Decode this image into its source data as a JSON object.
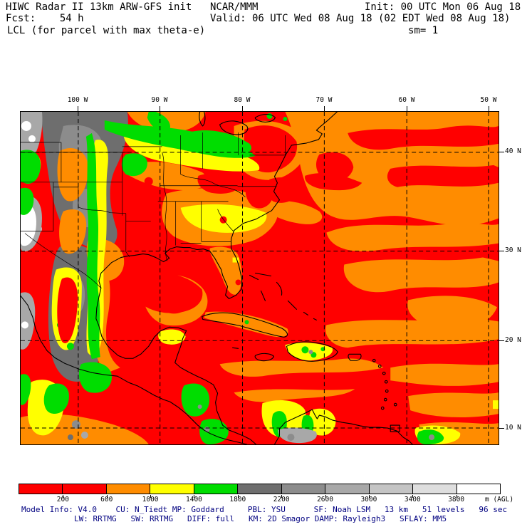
{
  "header": {
    "title": "HIWC Radar II 13km ARW-GFS init",
    "org": "NCAR/MMM",
    "init": "Init: 00 UTC Mon 06 Aug 18",
    "fcst": "Fcst:    54 h",
    "valid": "Valid: 06 UTC Wed 08 Aug 18 (02 EDT Wed 08 Aug 18)",
    "field": "LCL (for parcel with max theta-e)",
    "sm": "sm= 1"
  },
  "axes": {
    "lon_labels": [
      "100 W",
      "90 W",
      "80 W",
      "70 W",
      "60 W",
      "50 W"
    ],
    "lat_labels": [
      "40 N",
      "30 N",
      "20 N",
      "10 N"
    ]
  },
  "colorbar": {
    "ticks": [
      "200",
      "600",
      "1000",
      "1400",
      "1800",
      "2200",
      "2600",
      "3000",
      "3400",
      "3800"
    ],
    "unit": "m (AGL)",
    "segment_colors": [
      "#ff0000",
      "#ff0000",
      "#ff8c00",
      "#ffff00",
      "#00dd00",
      "#6e6e6e",
      "#8c8c8c",
      "#a8a8a8",
      "#c4c4c4",
      "#dedede",
      "#ffffff"
    ]
  },
  "footer": {
    "line1": "Model Info: V4.0    CU: N_Tiedt MP: Goddard     PBL: YSU      SF: Noah LSM   13 km   51 levels   96 sec",
    "line2": "LW: RRTMG   SW: RRTMG   DIFF: full   KM: 2D Smagor DAMP: Rayleigh3   SFLAY: MM5"
  },
  "palette": {
    "red": "#ff0000",
    "orange": "#ff8c00",
    "yellow": "#ffff00",
    "green": "#00dd00",
    "gray1": "#6e6e6e",
    "gray2": "#8c8c8c",
    "gray3": "#a8a8a8",
    "gray4": "#c4c4c4",
    "gray5": "#dedede",
    "white": "#ffffff",
    "footer_text": "#000080"
  },
  "chart_data": {
    "type": "heatmap",
    "title": "LCL (for parcel with max theta-e)",
    "model": "HIWC Radar II 13km ARW-GFS init",
    "source": "NCAR/MMM",
    "forecast_hour": "54 h",
    "init_time": "00 UTC Mon 06 Aug 18",
    "valid_time": "06 UTC Wed 08 Aug 18 (02 EDT Wed 08 Aug 18)",
    "storm_motion": "sm= 1",
    "units": "m (AGL)",
    "x_ticks": [
      "100 W",
      "90 W",
      "80 W",
      "70 W",
      "60 W",
      "50 W"
    ],
    "y_ticks": [
      "40 N",
      "30 N",
      "20 N",
      "10 N"
    ],
    "colorbar": {
      "boundary_values": [
        200,
        600,
        1000,
        1400,
        1800,
        2200,
        2600,
        3000,
        3400,
        3800
      ],
      "colors": [
        "#ff0000",
        "#ff0000",
        "#ff8c00",
        "#ffff00",
        "#00dd00",
        "#6e6e6e",
        "#8c8c8c",
        "#a8a8a8",
        "#c4c4c4",
        "#dedede",
        "#ffffff"
      ],
      "unit": "m (AGL)",
      "position": "bottom"
    },
    "grid": "dashed lat/lon lines every 10 degrees",
    "region": "Southeast US, Gulf of Mexico, Caribbean, western Atlantic",
    "field_summary": "Low LCL (red/orange, 0-1000 m) over most ocean and eastern US; yellow/green bands (1000-1800 m) along Plains fringe, mid-south, Hispaniola and Central America; gray to white (1800-3800+ m) over the high Plains and Mexican Plateau"
  }
}
